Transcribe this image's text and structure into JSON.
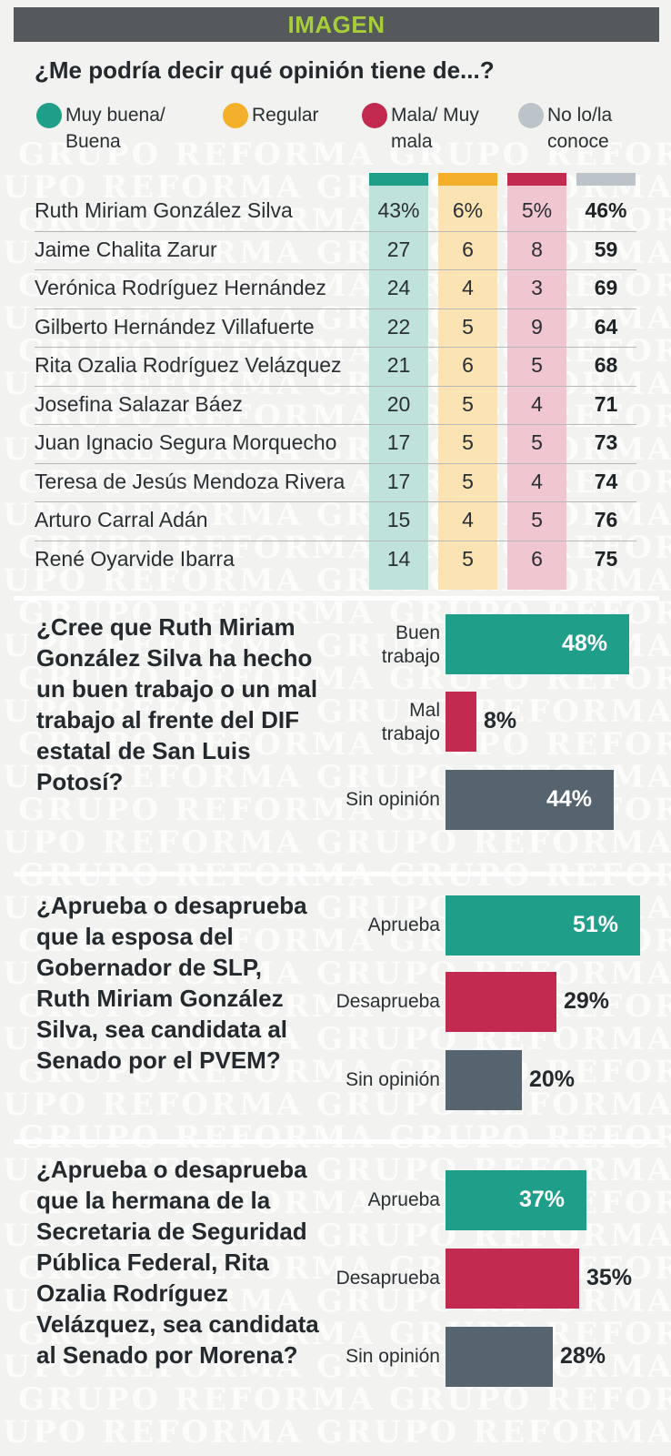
{
  "header": {
    "title": "IMAGEN"
  },
  "watermark": {
    "text": "GRUPO REFORMA"
  },
  "colors": {
    "green": "#1f9e8a",
    "orange": "#f5b02b",
    "red": "#c32a50",
    "gray": "#bcc3c9",
    "dark_gray": "#55646e"
  },
  "chart_data": [
    {
      "type": "table",
      "title": "¿Me podría decir qué opinión tiene de...?",
      "legend": [
        {
          "label": "Muy buena/ Buena",
          "color": "#1f9e8a"
        },
        {
          "label": "Regular",
          "color": "#f5b02b"
        },
        {
          "label": "Mala/ Muy mala",
          "color": "#c32a50"
        },
        {
          "label": "No lo/la conoce",
          "color": "#bcc3c9"
        }
      ],
      "rows": [
        {
          "name": "Ruth Miriam González Silva",
          "values": [
            "43%",
            "6%",
            "5%",
            "46%"
          ]
        },
        {
          "name": "Jaime Chalita Zarur",
          "values": [
            "27",
            "6",
            "8",
            "59"
          ]
        },
        {
          "name": "Verónica Rodríguez Hernández",
          "values": [
            "24",
            "4",
            "3",
            "69"
          ]
        },
        {
          "name": "Gilberto Hernández Villafuerte",
          "values": [
            "22",
            "5",
            "9",
            "64"
          ]
        },
        {
          "name": "Rita Ozalia Rodríguez Velázquez",
          "values": [
            "21",
            "6",
            "5",
            "68"
          ]
        },
        {
          "name": "Josefina Salazar Báez",
          "values": [
            "20",
            "5",
            "4",
            "71"
          ]
        },
        {
          "name": "Juan Ignacio Segura Morquecho",
          "values": [
            "17",
            "5",
            "5",
            "73"
          ]
        },
        {
          "name": "Teresa de Jesús Mendoza Rivera",
          "values": [
            "17",
            "5",
            "4",
            "74"
          ]
        },
        {
          "name": "Arturo Carral Adán",
          "values": [
            "15",
            "4",
            "5",
            "76"
          ]
        },
        {
          "name": "René Oyarvide Ibarra",
          "values": [
            "14",
            "5",
            "6",
            "75"
          ]
        }
      ]
    },
    {
      "type": "bar",
      "title": "¿Cree que Ruth Miriam González Silva ha hecho un buen trabajo o un mal trabajo al frente del DIF estatal de San Luis Potosí?",
      "categories": [
        "Buen trabajo",
        "Mal trabajo",
        "Sin opinión"
      ],
      "values": [
        48,
        8,
        44
      ],
      "value_labels": [
        "48%",
        "8%",
        "44%"
      ],
      "colors": [
        "#1f9e8a",
        "#c32a50",
        "#55646e"
      ]
    },
    {
      "type": "bar",
      "title": "¿Aprueba o desaprueba que la esposa del Gobernador de SLP, Ruth Miriam González Silva, sea candidata al Senado por el PVEM?",
      "categories": [
        "Aprueba",
        "Desaprueba",
        "Sin opinión"
      ],
      "values": [
        51,
        29,
        20
      ],
      "value_labels": [
        "51%",
        "29%",
        "20%"
      ],
      "colors": [
        "#1f9e8a",
        "#c32a50",
        "#55646e"
      ]
    },
    {
      "type": "bar",
      "title": "¿Aprueba o desaprueba que la hermana de la Secretaria de Seguridad Pública Federal, Rita Ozalia Rodríguez Velázquez, sea candidata al Senado por Morena?",
      "categories": [
        "Aprueba",
        "Desaprueba",
        "Sin opinión"
      ],
      "values": [
        37,
        35,
        28
      ],
      "value_labels": [
        "37%",
        "35%",
        "28%"
      ],
      "colors": [
        "#1f9e8a",
        "#c32a50",
        "#55646e"
      ]
    }
  ]
}
